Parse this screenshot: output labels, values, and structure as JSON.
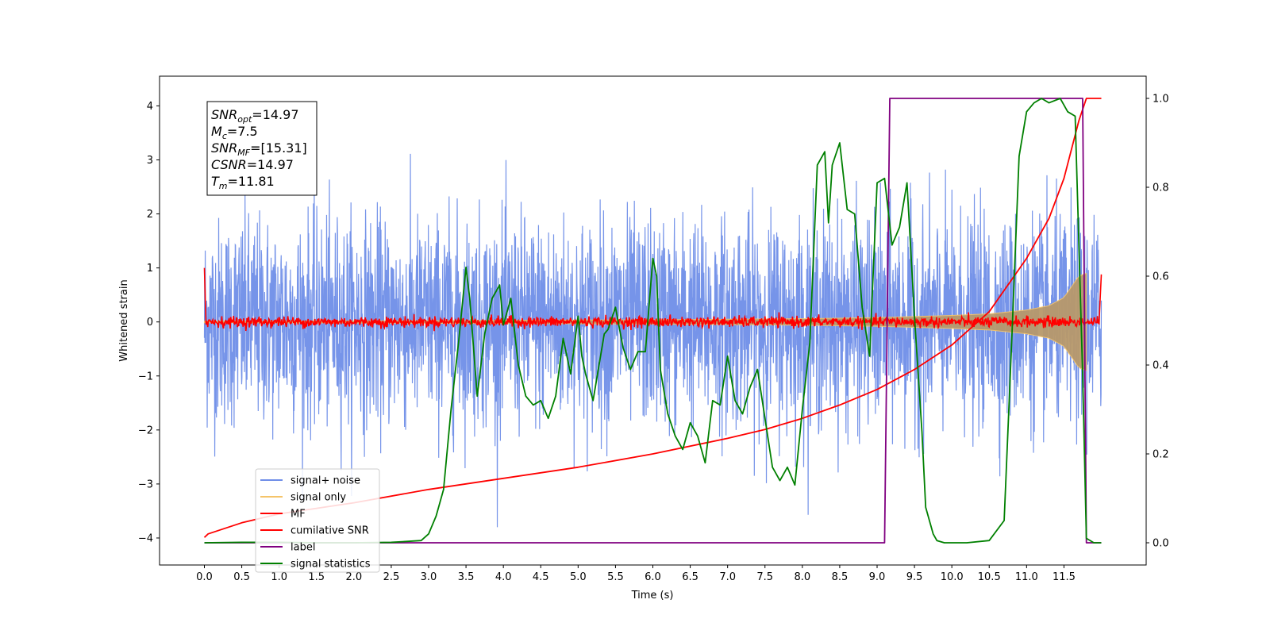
{
  "chart_data": {
    "type": "line",
    "xlabel": "Time (s)",
    "ylabel": "Whitened strain",
    "xlim": [
      -0.6,
      12.6
    ],
    "ylim": [
      -4.5,
      4.55
    ],
    "y2lim": [
      -0.05,
      1.05
    ],
    "grid": false,
    "legend_position": "lower-left",
    "xticks": [
      "0.0",
      "0.5",
      "1.0",
      "1.5",
      "2.0",
      "2.5",
      "3.0",
      "3.5",
      "4.0",
      "4.5",
      "5.0",
      "5.5",
      "6.0",
      "6.5",
      "7.0",
      "7.5",
      "8.0",
      "8.5",
      "9.0",
      "9.5",
      "10.0",
      "10.5",
      "11.0",
      "11.5"
    ],
    "xtick_values": [
      0,
      0.5,
      1,
      1.5,
      2,
      2.5,
      3,
      3.5,
      4,
      4.5,
      5,
      5.5,
      6,
      6.5,
      7,
      7.5,
      8,
      8.5,
      9,
      9.5,
      10,
      10.5,
      11,
      11.5
    ],
    "yticks": [
      "4",
      "3",
      "2",
      "1",
      "0",
      "−1",
      "−2",
      "−3",
      "−4"
    ],
    "ytick_values": [
      4,
      3,
      2,
      1,
      0,
      -1,
      -2,
      -3,
      -4
    ],
    "y2ticks": [
      "1.0",
      "0.8",
      "0.6",
      "0.4",
      "0.2",
      "0.0"
    ],
    "y2tick_values": [
      1,
      0.8,
      0.6,
      0.4,
      0.2,
      0
    ],
    "annotation": {
      "lines": [
        {
          "base": "SNR",
          "sub": "opt",
          "rest": "=14.97"
        },
        {
          "base": "M",
          "sub": "c",
          "rest": "=7.5"
        },
        {
          "base": "SNR",
          "sub": "MF",
          "rest": "=[15.31]"
        },
        {
          "base": "CSNR",
          "sub": "",
          "rest": "=14.97"
        },
        {
          "base": "T",
          "sub": "m",
          "rest": "=11.81"
        }
      ]
    },
    "series": [
      {
        "name": "signal+ noise",
        "color": "#6f8ee8",
        "axis": "left",
        "description_values": "white noise, std ~1.0, spanning 0.0 to 12.0 s, peaks ~4.2"
      },
      {
        "name": "signal only",
        "color": "#f5c469",
        "axis": "left",
        "envelope_t": [
          0,
          2,
          4,
          6,
          8,
          9,
          10,
          10.5,
          11,
          11.3,
          11.5,
          11.7,
          11.8
        ],
        "envelope_amp": [
          0.015,
          0.02,
          0.03,
          0.04,
          0.06,
          0.08,
          0.12,
          0.15,
          0.22,
          0.3,
          0.45,
          0.85,
          0.9
        ]
      },
      {
        "name": "MF",
        "color": "#ff0000",
        "axis": "left",
        "start_value": 1.0,
        "end_value": 0.88,
        "baseline": 0.0,
        "noise": 0.05
      },
      {
        "name": "cumilative SNR",
        "color": "#ff0000",
        "axis": "right",
        "t": [
          0,
          0.05,
          0.5,
          1,
          2,
          3,
          4,
          5,
          6,
          7,
          7.5,
          8,
          8.5,
          9,
          9.5,
          10,
          10.5,
          11,
          11.3,
          11.5,
          11.7,
          11.8,
          12.0
        ],
        "y": [
          0.012,
          0.02,
          0.045,
          0.065,
          0.09,
          0.12,
          0.145,
          0.17,
          0.2,
          0.235,
          0.255,
          0.28,
          0.31,
          0.345,
          0.39,
          0.445,
          0.52,
          0.64,
          0.73,
          0.82,
          0.95,
          1.0,
          1.0
        ]
      },
      {
        "name": "label",
        "color": "#800080",
        "axis": "right",
        "t": [
          0,
          9.1,
          9.17,
          11.75,
          11.8,
          12.0
        ],
        "y": [
          0,
          0,
          1,
          1,
          0,
          0
        ]
      },
      {
        "name": "signal statistics",
        "color": "#008000",
        "axis": "right",
        "t": [
          0,
          0.5,
          1,
          1.5,
          2,
          2.5,
          2.9,
          3.0,
          3.1,
          3.2,
          3.3,
          3.4,
          3.5,
          3.55,
          3.65,
          3.75,
          3.85,
          3.95,
          4.0,
          4.1,
          4.2,
          4.3,
          4.4,
          4.5,
          4.6,
          4.7,
          4.8,
          4.9,
          5.0,
          5.05,
          5.1,
          5.2,
          5.3,
          5.35,
          5.4,
          5.5,
          5.6,
          5.7,
          5.8,
          5.9,
          6.0,
          6.05,
          6.1,
          6.2,
          6.3,
          6.4,
          6.5,
          6.6,
          6.7,
          6.8,
          6.9,
          7.0,
          7.1,
          7.2,
          7.3,
          7.4,
          7.5,
          7.6,
          7.7,
          7.8,
          7.9,
          8.0,
          8.1,
          8.2,
          8.3,
          8.35,
          8.4,
          8.5,
          8.6,
          8.7,
          8.8,
          8.9,
          9.0,
          9.1,
          9.2,
          9.3,
          9.4,
          9.5,
          9.6,
          9.65,
          9.75,
          9.8,
          9.9,
          10.0,
          10.2,
          10.5,
          10.7,
          10.8,
          10.9,
          11.0,
          11.1,
          11.2,
          11.3,
          11.45,
          11.55,
          11.65,
          11.75,
          11.8,
          11.9,
          12.0
        ],
        "y": [
          0.0,
          0.001,
          0.001,
          0.0,
          0.0,
          0.001,
          0.005,
          0.02,
          0.06,
          0.12,
          0.3,
          0.45,
          0.62,
          0.55,
          0.33,
          0.47,
          0.55,
          0.58,
          0.49,
          0.55,
          0.4,
          0.33,
          0.31,
          0.32,
          0.28,
          0.33,
          0.46,
          0.38,
          0.51,
          0.42,
          0.38,
          0.32,
          0.42,
          0.47,
          0.48,
          0.53,
          0.44,
          0.39,
          0.43,
          0.43,
          0.64,
          0.6,
          0.39,
          0.29,
          0.24,
          0.21,
          0.27,
          0.24,
          0.18,
          0.32,
          0.31,
          0.42,
          0.32,
          0.29,
          0.35,
          0.39,
          0.28,
          0.17,
          0.14,
          0.17,
          0.13,
          0.3,
          0.45,
          0.85,
          0.88,
          0.72,
          0.85,
          0.9,
          0.75,
          0.74,
          0.53,
          0.42,
          0.81,
          0.82,
          0.67,
          0.71,
          0.81,
          0.51,
          0.25,
          0.08,
          0.02,
          0.005,
          0.0,
          0.0,
          0.0,
          0.005,
          0.05,
          0.45,
          0.87,
          0.97,
          0.99,
          1.0,
          0.99,
          1.0,
          0.97,
          0.96,
          0.38,
          0.01,
          0.0,
          0.0
        ]
      }
    ]
  }
}
